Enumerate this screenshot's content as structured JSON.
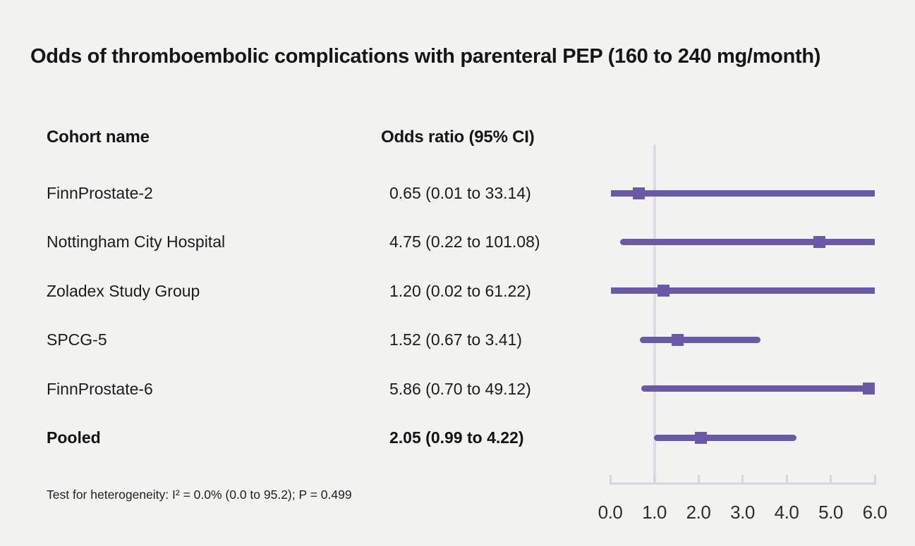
{
  "title": "Odds of thromboembolic complications with parenteral PEP (160 to 240 mg/month)",
  "columns": {
    "cohort": "Cohort name",
    "odds_ratio": "Odds ratio (95% CI)"
  },
  "footnote": "Test for heterogeneity: I² = 0.0% (0.0 to 95.2); P = 0.499",
  "chart_data": {
    "type": "forest",
    "title": "Odds of thromboembolic complications with parenteral PEP (160 to 240 mg/month)",
    "xlabel": "",
    "ylabel": "",
    "xlim": [
      0,
      6
    ],
    "x_tick_labels": [
      "0.0",
      "1.0",
      "2.0",
      "3.0",
      "4.0",
      "5.0",
      "6.0"
    ],
    "x_tick_values": [
      0,
      1,
      2,
      3,
      4,
      5,
      6
    ],
    "reference_line_x": 1.0,
    "grid": false,
    "legend": "none",
    "rows": [
      {
        "label": "FinnProstate-2",
        "or": 0.65,
        "ci_low": 0.01,
        "ci_high": 33.14,
        "display": "0.65 (0.01 to 33.14)",
        "bold": false
      },
      {
        "label": "Nottingham City Hospital",
        "or": 4.75,
        "ci_low": 0.22,
        "ci_high": 101.08,
        "display": "4.75 (0.22 to 101.08)",
        "bold": false
      },
      {
        "label": "Zoladex Study Group",
        "or": 1.2,
        "ci_low": 0.02,
        "ci_high": 61.22,
        "display": "1.20 (0.02 to 61.22)",
        "bold": false
      },
      {
        "label": "SPCG-5",
        "or": 1.52,
        "ci_low": 0.67,
        "ci_high": 3.41,
        "display": "1.52 (0.67 to 3.41)",
        "bold": false
      },
      {
        "label": "FinnProstate-6",
        "or": 5.86,
        "ci_low": 0.7,
        "ci_high": 49.12,
        "display": "5.86 (0.70 to 49.12)",
        "bold": false
      },
      {
        "label": "Pooled",
        "or": 2.05,
        "ci_low": 0.99,
        "ci_high": 4.22,
        "display": "2.05 (0.99 to 4.22)",
        "bold": true
      }
    ],
    "colors": {
      "bar": "#6a59a4",
      "marker": "#6a59a4",
      "axis": "#d2d8df",
      "reference_line": "#dadee4",
      "background": "#f2f2f1",
      "text": "#1c1c1c"
    }
  }
}
